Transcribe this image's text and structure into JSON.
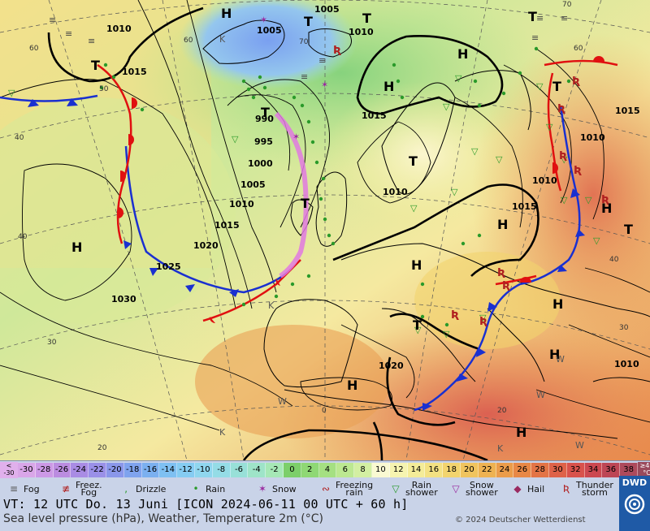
{
  "colorbar": {
    "low_label": "<\n-30",
    "high_label": "≥40\n°C",
    "cells": [
      {
        "label": "-30",
        "color": "#d9a6e8"
      },
      {
        "label": "-28",
        "color": "#cc99e6"
      },
      {
        "label": "-26",
        "color": "#bb8ce0"
      },
      {
        "label": "-24",
        "color": "#a98ce4"
      },
      {
        "label": "-22",
        "color": "#9a90e8"
      },
      {
        "label": "-20",
        "color": "#8a97ea"
      },
      {
        "label": "-18",
        "color": "#7fa3ee"
      },
      {
        "label": "-16",
        "color": "#7bb0f0"
      },
      {
        "label": "-14",
        "color": "#7ec0f2"
      },
      {
        "label": "-12",
        "color": "#85ccf2"
      },
      {
        "label": "-10",
        "color": "#8fd6ee"
      },
      {
        "label": "-8",
        "color": "#94dce6"
      },
      {
        "label": "-6",
        "color": "#98e0d8"
      },
      {
        "label": "-4",
        "color": "#9ee4c8"
      },
      {
        "label": "-2",
        "color": "#a6e8b6"
      },
      {
        "label": "0",
        "color": "#7ccf6a"
      },
      {
        "label": "2",
        "color": "#8fd875"
      },
      {
        "label": "4",
        "color": "#a5e082"
      },
      {
        "label": "6",
        "color": "#bce891"
      },
      {
        "label": "8",
        "color": "#d3efa2"
      },
      {
        "label": "10",
        "color": "#fafad2"
      },
      {
        "label": "12",
        "color": "#f6f4b0"
      },
      {
        "label": "14",
        "color": "#f4ec98"
      },
      {
        "label": "16",
        "color": "#f3e182"
      },
      {
        "label": "18",
        "color": "#f2d46e"
      },
      {
        "label": "20",
        "color": "#f0c45e"
      },
      {
        "label": "22",
        "color": "#eeb252"
      },
      {
        "label": "24",
        "color": "#eb9c4a"
      },
      {
        "label": "26",
        "color": "#e88846"
      },
      {
        "label": "28",
        "color": "#e37446"
      },
      {
        "label": "30",
        "color": "#de6249"
      },
      {
        "label": "32",
        "color": "#d8524c"
      },
      {
        "label": "34",
        "color": "#cc4850"
      },
      {
        "label": "36",
        "color": "#bd4655"
      },
      {
        "label": "38",
        "color": "#ad4a5c"
      }
    ]
  },
  "weather_legend": [
    {
      "label": "Fog",
      "icon": "fog-icon",
      "glyph": "≡",
      "color": "#555"
    },
    {
      "label": "Freez.\nFog",
      "icon": "freezing-fog-icon",
      "glyph": "≢",
      "color": "#b02020"
    },
    {
      "label": "Drizzle",
      "icon": "drizzle-icon",
      "glyph": "‚",
      "color": "#2a9a2a"
    },
    {
      "label": "Rain",
      "icon": "rain-icon",
      "glyph": "•",
      "color": "#2a9a2a"
    },
    {
      "label": "Snow",
      "icon": "snow-icon",
      "glyph": "✶",
      "color": "#9a2aa0"
    },
    {
      "label": "Freezing\nrain",
      "icon": "freezing-rain-icon",
      "glyph": "∾",
      "color": "#b02020"
    },
    {
      "label": "Rain\nshower",
      "icon": "rain-shower-icon",
      "glyph": "▽",
      "color": "#2a9a2a"
    },
    {
      "label": "Snow\nshower",
      "icon": "snow-shower-icon",
      "glyph": "▽",
      "color": "#9a2aa0"
    },
    {
      "label": "Hail",
      "icon": "hail-icon",
      "glyph": "◆",
      "color": "#9a2a60"
    },
    {
      "label": "Thunder\nstorm",
      "icon": "thunderstorm-icon",
      "glyph": "Ʀ",
      "color": "#b02020"
    }
  ],
  "vt_line": "VT: 12 UTC Do.  13 Juni [ICON 2024-06-11  00 UTC + 60 h]",
  "caption": "Sea level pressure (hPa), Weather, Temperature 2m (°C)",
  "copyright": "© 2024 Deutscher Wetterdienst",
  "logo": {
    "text": "DWD"
  },
  "map": {
    "pressure_labels": [
      {
        "text": "1010",
        "cls": "iso"
      },
      {
        "text": "1015",
        "cls": "iso"
      },
      {
        "text": "1005",
        "cls": "iso"
      },
      {
        "text": "1005",
        "cls": "iso"
      },
      {
        "text": "1010",
        "cls": "iso"
      },
      {
        "text": "990",
        "cls": "iso"
      },
      {
        "text": "995",
        "cls": "iso"
      },
      {
        "text": "1000",
        "cls": "iso"
      },
      {
        "text": "1005",
        "cls": "iso"
      },
      {
        "text": "1010",
        "cls": "iso"
      },
      {
        "text": "1015",
        "cls": "iso"
      },
      {
        "text": "1020",
        "cls": "iso"
      },
      {
        "text": "1025",
        "cls": "iso"
      },
      {
        "text": "1030",
        "cls": "iso"
      },
      {
        "text": "1015",
        "cls": "iso"
      },
      {
        "text": "1010",
        "cls": "iso"
      },
      {
        "text": "1015",
        "cls": "iso"
      },
      {
        "text": "1010",
        "cls": "iso"
      },
      {
        "text": "1015",
        "cls": "iso"
      },
      {
        "text": "1010",
        "cls": "iso"
      },
      {
        "text": "1020",
        "cls": "iso"
      },
      {
        "text": "1010",
        "cls": "iso"
      }
    ],
    "highs": [
      "H",
      "H",
      "H",
      "H",
      "H",
      "H",
      "H",
      "H",
      "H",
      "H",
      "H"
    ],
    "lows": [
      "T",
      "T",
      "T",
      "T",
      "T",
      "T",
      "T",
      "T",
      "T",
      "T"
    ],
    "grid_labels": [
      "60",
      "60",
      "50",
      "40",
      "40",
      "30",
      "20",
      "0",
      "20",
      "30",
      "40",
      "60",
      "70",
      "70"
    ],
    "temperature_marks": [
      "K",
      "K",
      "W",
      "W",
      "K",
      "W",
      "K",
      "W"
    ]
  }
}
